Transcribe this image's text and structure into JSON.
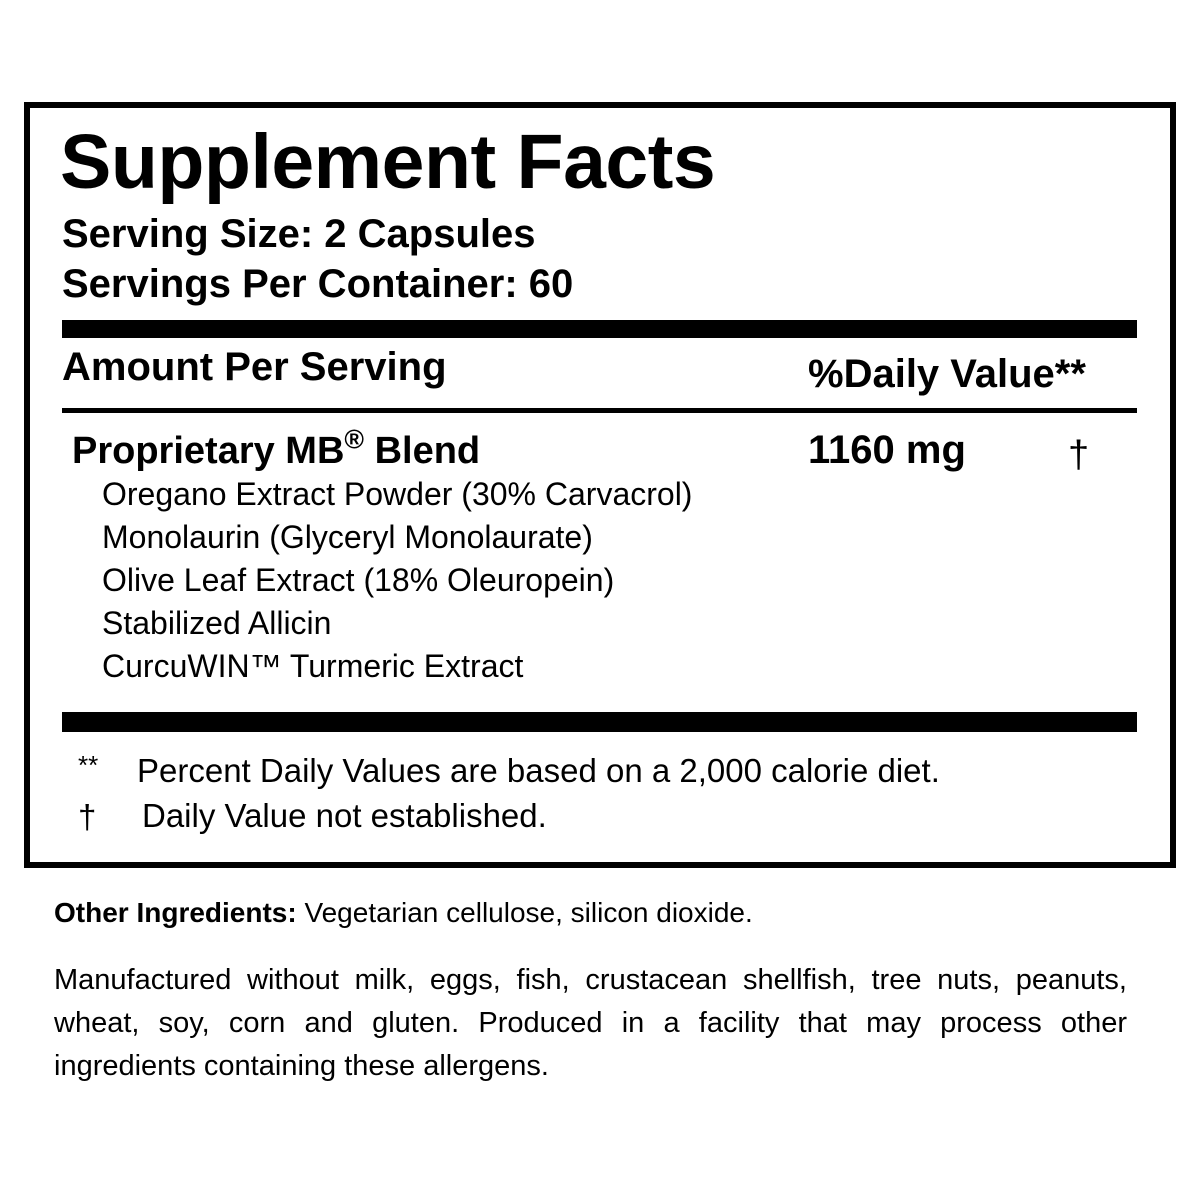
{
  "facts": {
    "title": "Supplement Facts",
    "serving_size": "Serving Size: 2 Capsules",
    "servings_per_container": "Servings Per Container: 60",
    "amount_header": "Amount Per Serving",
    "dv_header": "%Daily Value**",
    "blend": {
      "name": "Proprietary MB",
      "mark": "®",
      "suffix": " Blend",
      "amount": "1160 mg",
      "dv": "†"
    },
    "ingredients": [
      "Oregano Extract Powder (30% Carvacrol)",
      "Monolaurin (Glyceryl Monolaurate)",
      "Olive Leaf Extract (18% Oleuropein)",
      "Stabilized Allicin",
      "CurcuWIN™ Turmeric Extract"
    ],
    "footnotes": [
      {
        "symbol": "**",
        "text": "Percent Daily Values are based on a 2,000 calorie diet."
      },
      {
        "symbol": "†",
        "text": "Daily Value not established."
      }
    ]
  },
  "other_ingredients": {
    "label": "Other Ingredients:",
    "text": " Vegetarian cellulose, silicon dioxide."
  },
  "allergen_statement": "Manufactured without milk, eggs, fish, crustacean shellfish, tree nuts, peanuts, wheat, soy, corn and gluten. Produced in a facility that may process other ingredients containing these allergens."
}
